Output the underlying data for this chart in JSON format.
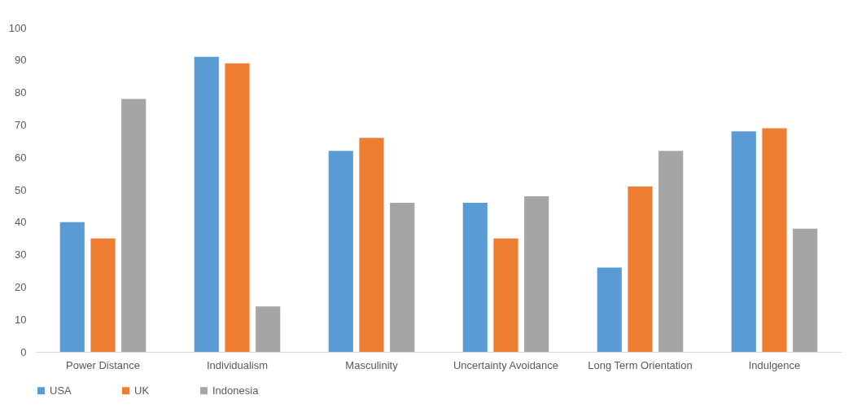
{
  "chart_data": {
    "type": "bar",
    "categories": [
      "Power Distance",
      "Individualism",
      "Masculinity",
      "Uncertainty Avoidance",
      "Long Term Orientation",
      "Indulgence"
    ],
    "series": [
      {
        "name": "USA",
        "color": "#5b9bd5",
        "values": [
          40,
          91,
          62,
          46,
          26,
          68
        ]
      },
      {
        "name": "UK",
        "color": "#ed7d31",
        "values": [
          35,
          89,
          66,
          35,
          51,
          69
        ]
      },
      {
        "name": "Indonesia",
        "color": "#a5a5a5",
        "values": [
          78,
          14,
          46,
          48,
          62,
          38
        ]
      }
    ],
    "ylim": [
      0,
      100
    ],
    "yticks": [
      0,
      10,
      20,
      30,
      40,
      50,
      60,
      70,
      80,
      90,
      100
    ],
    "grid": false,
    "legend": "bottom"
  }
}
